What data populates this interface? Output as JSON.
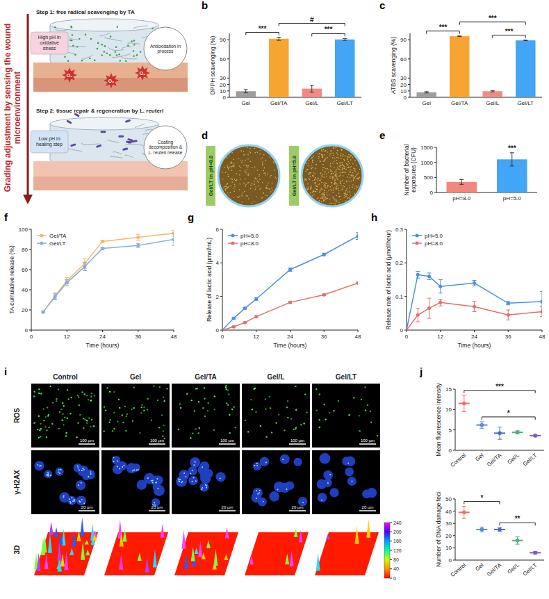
{
  "figure": {
    "panel_labels": [
      "b",
      "c",
      "d",
      "e",
      "f",
      "g",
      "h",
      "i",
      "j"
    ],
    "schematic": {
      "side_title": "Grading adjustment by sensing the wound microenvironment",
      "step1": "Step 1: free radical scavenging by TA",
      "step1_note": "High pH in oxidative stress",
      "step1_process": "Antioxidation in process",
      "step2": "Step 2: tissue repair & regeneration by L. reuteri",
      "step2_note": "Low pH in healing step",
      "step2_process": "Coating decomposition & L. reuteri release",
      "radical_label": "O₂"
    },
    "plates": [
      "Gel/LT in pH=8.0",
      "Gel/LT in pH=5.0"
    ],
    "imaging": {
      "columns": [
        "Control",
        "Gel",
        "Gel/TA",
        "Gel/L",
        "Gel/LT"
      ],
      "rows": [
        "ROS",
        "γ-H2AX",
        "3D"
      ],
      "scale_bars": [
        "100 µm",
        "20 µm"
      ],
      "colorbar": {
        "range": [
          0,
          240
        ],
        "ticks": [
          0,
          40,
          80,
          120,
          160,
          200,
          240
        ]
      }
    }
  },
  "chart_data": [
    {
      "type": "bar",
      "y_label": "DPPH scavenging (%)",
      "categories": [
        "Gel",
        "Gel/TA",
        "Gel/L",
        "Gel/LT"
      ],
      "values": [
        9.5,
        91.5,
        13.5,
        90.5
      ],
      "errors": [
        2.5,
        2.5,
        5.5,
        1.5
      ],
      "colors": [
        "#9e9e9e",
        "#f7a531",
        "#f28b82",
        "#42a5f5"
      ],
      "ylim": [
        0,
        100
      ],
      "yticks": [
        0,
        10,
        20,
        30,
        60,
        90
      ],
      "annotations": [
        {
          "text": "***",
          "from": 0,
          "to": 1
        },
        {
          "text": "***",
          "from": 2,
          "to": 3
        },
        {
          "text": "#",
          "from": 1,
          "to": 3
        }
      ]
    },
    {
      "type": "bar",
      "y_label": "ATBS scavenging (%)",
      "categories": [
        "Gel",
        "Gel/TA",
        "Gel/L",
        "Gel/LT"
      ],
      "values": [
        7.8,
        95.5,
        9.5,
        89
      ],
      "errors": [
        1,
        0.5,
        1,
        0.5
      ],
      "colors": [
        "#9e9e9e",
        "#f7a531",
        "#f28b82",
        "#42a5f5"
      ],
      "ylim": [
        0,
        100
      ],
      "yticks": [
        0,
        10,
        20,
        30,
        60,
        90
      ],
      "annotations": [
        {
          "text": "***",
          "from": 0,
          "to": 1
        },
        {
          "text": "***",
          "from": 2,
          "to": 3
        },
        {
          "text": "***",
          "from": 1,
          "to": 3
        }
      ]
    },
    {
      "type": "bar",
      "y_label": "Number of bacterial exposures (CFU)",
      "categories": [
        "pH=8.0",
        "pH=5.0"
      ],
      "values": [
        350,
        1100
      ],
      "errors": [
        80,
        220
      ],
      "colors": [
        "#f4877b",
        "#42a5f5"
      ],
      "ylim": [
        0,
        1500
      ],
      "yticks": [
        0,
        500,
        1000,
        1500
      ],
      "annotations": [
        {
          "text": "***",
          "from": 1,
          "to": 1
        }
      ]
    },
    {
      "type": "line",
      "x_label": "Time (hours)",
      "y_label": "TA cumulative release (%)",
      "x": [
        4,
        8,
        12,
        18,
        24,
        36,
        48
      ],
      "series": [
        {
          "name": "Gel/TA",
          "color": "#f4b76b",
          "values": [
            18,
            34,
            49,
            66,
            88,
            92,
            96
          ],
          "errors": [
            1,
            3,
            3,
            5,
            1,
            3,
            3
          ]
        },
        {
          "name": "Gel/LT",
          "color": "#86aee0",
          "values": [
            18,
            33,
            47,
            63,
            81,
            84,
            90
          ],
          "errors": [
            1,
            3,
            3,
            4,
            1,
            2,
            6
          ]
        }
      ],
      "xlim": [
        0,
        48
      ],
      "xticks": [
        0,
        12,
        24,
        36,
        48
      ],
      "ylim": [
        0,
        100
      ],
      "yticks": [
        0,
        20,
        40,
        60,
        80,
        100
      ],
      "marker": "circle",
      "legend": "upper left"
    },
    {
      "type": "line",
      "x_label": "Time (hours)",
      "y_label": "Release of lactic acid (µmol/mL)",
      "x": [
        0,
        4,
        8,
        12,
        24,
        36,
        48
      ],
      "series": [
        {
          "name": "pH=5.0",
          "color": "#4a90e2",
          "values": [
            0,
            0.7,
            1.3,
            1.85,
            3.6,
            4.5,
            5.6
          ],
          "errors": [
            0,
            0.05,
            0.05,
            0.08,
            0.1,
            0.08,
            0.2
          ]
        },
        {
          "name": "pH=8.0",
          "color": "#e0706a",
          "values": [
            0,
            0.2,
            0.45,
            0.8,
            1.65,
            2.1,
            2.8
          ],
          "errors": [
            0,
            0.03,
            0.03,
            0.05,
            0.06,
            0.05,
            0.05
          ]
        }
      ],
      "xlim": [
        0,
        48
      ],
      "xticks": [
        0,
        12,
        24,
        36,
        48
      ],
      "ylim": [
        0,
        6
      ],
      "yticks": [
        0,
        2,
        4,
        6
      ],
      "marker": "circle",
      "legend": "upper left"
    },
    {
      "type": "line",
      "x_label": "Time (hours)",
      "y_label": "Release rate of lactic acid (µmol/hour)",
      "x": [
        0,
        4,
        8,
        12,
        24,
        36,
        48
      ],
      "series": [
        {
          "name": "pH=5.0",
          "color": "#4a90e2",
          "values": [
            0,
            0.165,
            0.16,
            0.13,
            0.14,
            0.08,
            0.085
          ],
          "errors": [
            0,
            0.01,
            0.01,
            0.02,
            0.008,
            0.005,
            0.03
          ]
        },
        {
          "name": "pH=8.0",
          "color": "#e0706a",
          "values": [
            0,
            0.045,
            0.065,
            0.082,
            0.07,
            0.045,
            0.055
          ],
          "errors": [
            0,
            0.02,
            0.03,
            0.01,
            0.015,
            0.015,
            0.015
          ]
        }
      ],
      "xlim": [
        0,
        48
      ],
      "xticks": [
        0,
        12,
        24,
        36,
        48
      ],
      "ylim": [
        0,
        0.3
      ],
      "yticks": [
        0,
        0.1,
        0.2,
        0.3
      ],
      "marker": "circle",
      "legend": "upper left"
    },
    {
      "type": "dot",
      "y_label": "Mean fluorescence intensity",
      "categories": [
        "Control",
        "Gel",
        "Gel/TA",
        "Gel/L",
        "Gel/LT"
      ],
      "values": [
        11.5,
        6.2,
        4.2,
        4.4,
        3.6
      ],
      "errors": [
        2,
        0.8,
        1.5,
        0.4,
        0.2
      ],
      "colors": [
        "#f26b6b",
        "#5b8bd9",
        "#3f6fc4",
        "#4caf7d",
        "#7e5bbf"
      ],
      "ylim": [
        0,
        15
      ],
      "yticks": [
        0,
        5,
        10,
        15
      ],
      "annotations": [
        {
          "text": "***",
          "from": 0,
          "to": 4
        },
        {
          "text": "*",
          "from": 1,
          "to": 4
        }
      ]
    },
    {
      "type": "dot",
      "y_label": "Number of DNA damage foci",
      "categories": [
        "Control",
        "Gel",
        "Gel/TA",
        "Gel/L",
        "Gel/LT"
      ],
      "values": [
        39,
        25,
        25,
        16,
        6
      ],
      "errors": [
        5,
        2,
        1.5,
        3,
        1
      ],
      "colors": [
        "#f26b6b",
        "#5b8bd9",
        "#3f6fc4",
        "#4caf7d",
        "#7e5bbf"
      ],
      "ylim": [
        0,
        50
      ],
      "yticks": [
        0,
        10,
        20,
        30,
        40,
        50
      ],
      "annotations": [
        {
          "text": "*",
          "from": 0,
          "to": 2
        },
        {
          "text": "**",
          "from": 2,
          "to": 4
        }
      ]
    }
  ]
}
